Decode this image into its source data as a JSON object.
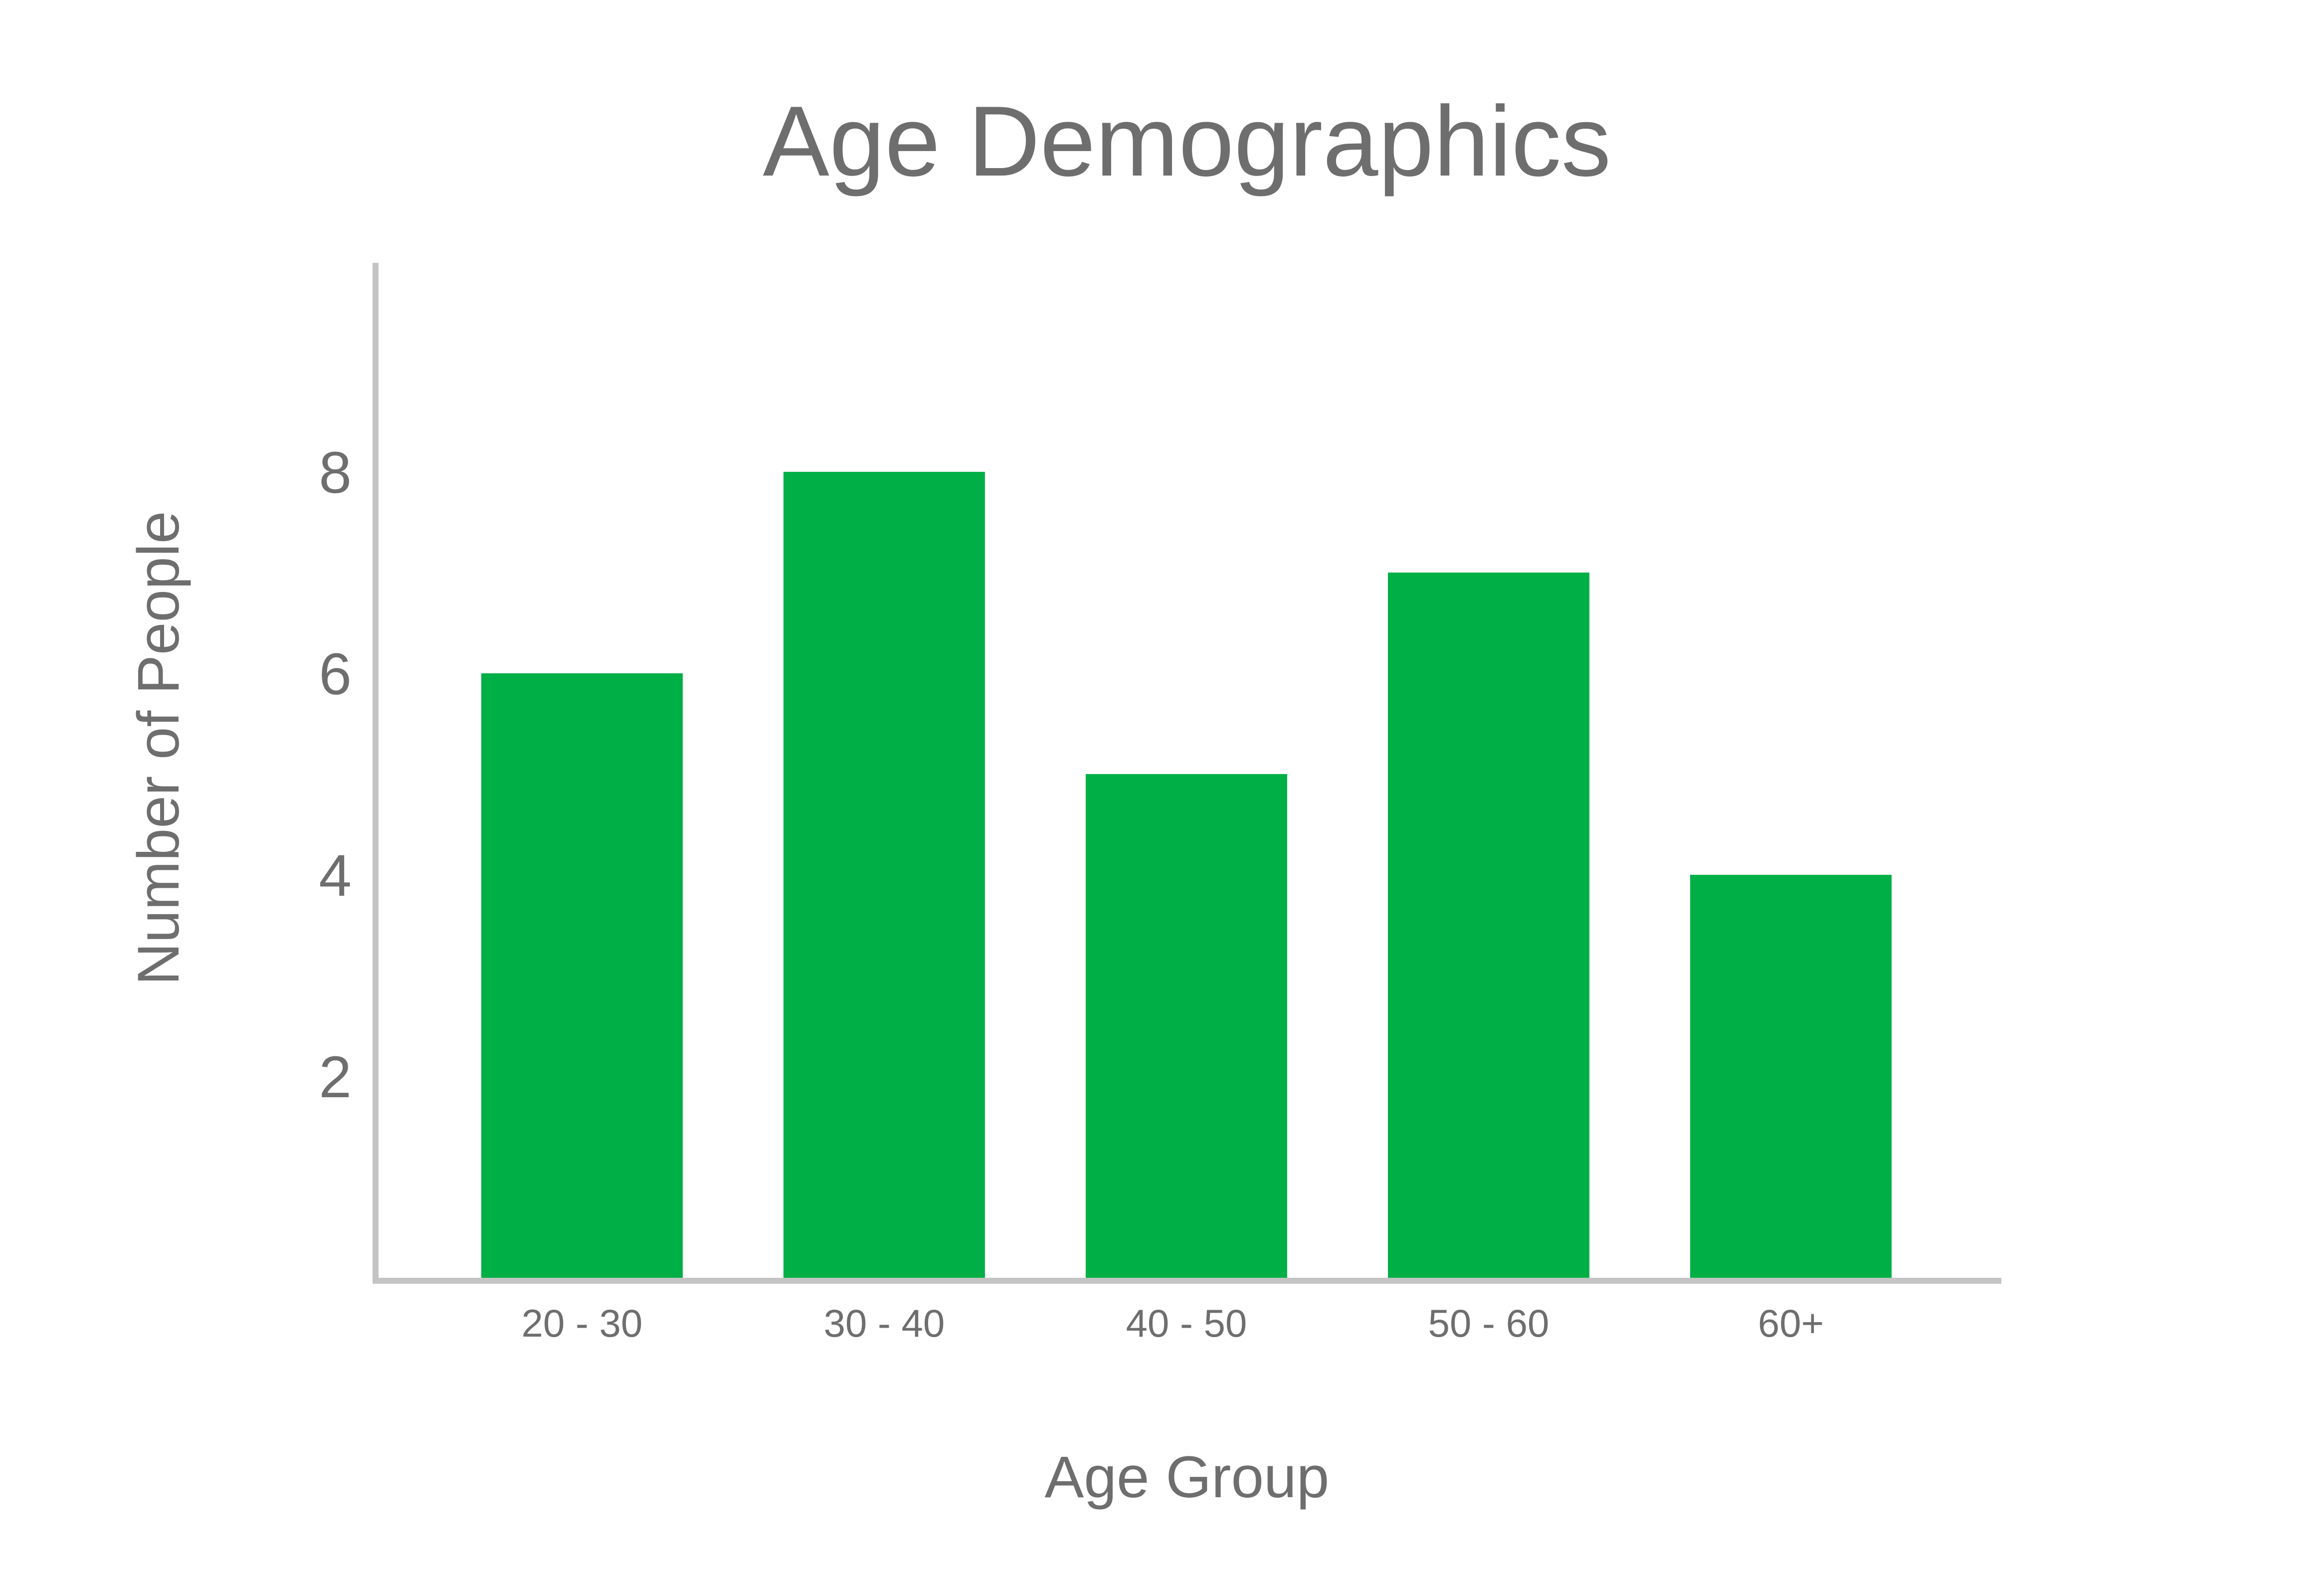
{
  "chart_data": {
    "type": "bar",
    "title": "Age Demographics",
    "xlabel": "Age Group",
    "ylabel": "Number of People",
    "categories": [
      "20 - 30",
      "30 - 40",
      "40 - 50",
      "50 - 60",
      "60+"
    ],
    "values": [
      6,
      8,
      5,
      7,
      4
    ],
    "yticks": [
      "2",
      "4",
      "6",
      "8"
    ],
    "ylim": [
      0,
      10
    ],
    "grid": false,
    "legend": "none",
    "colors": {
      "bar": "#00b046",
      "axis": "#c4c4c4",
      "text": "#6e6e6e"
    }
  }
}
